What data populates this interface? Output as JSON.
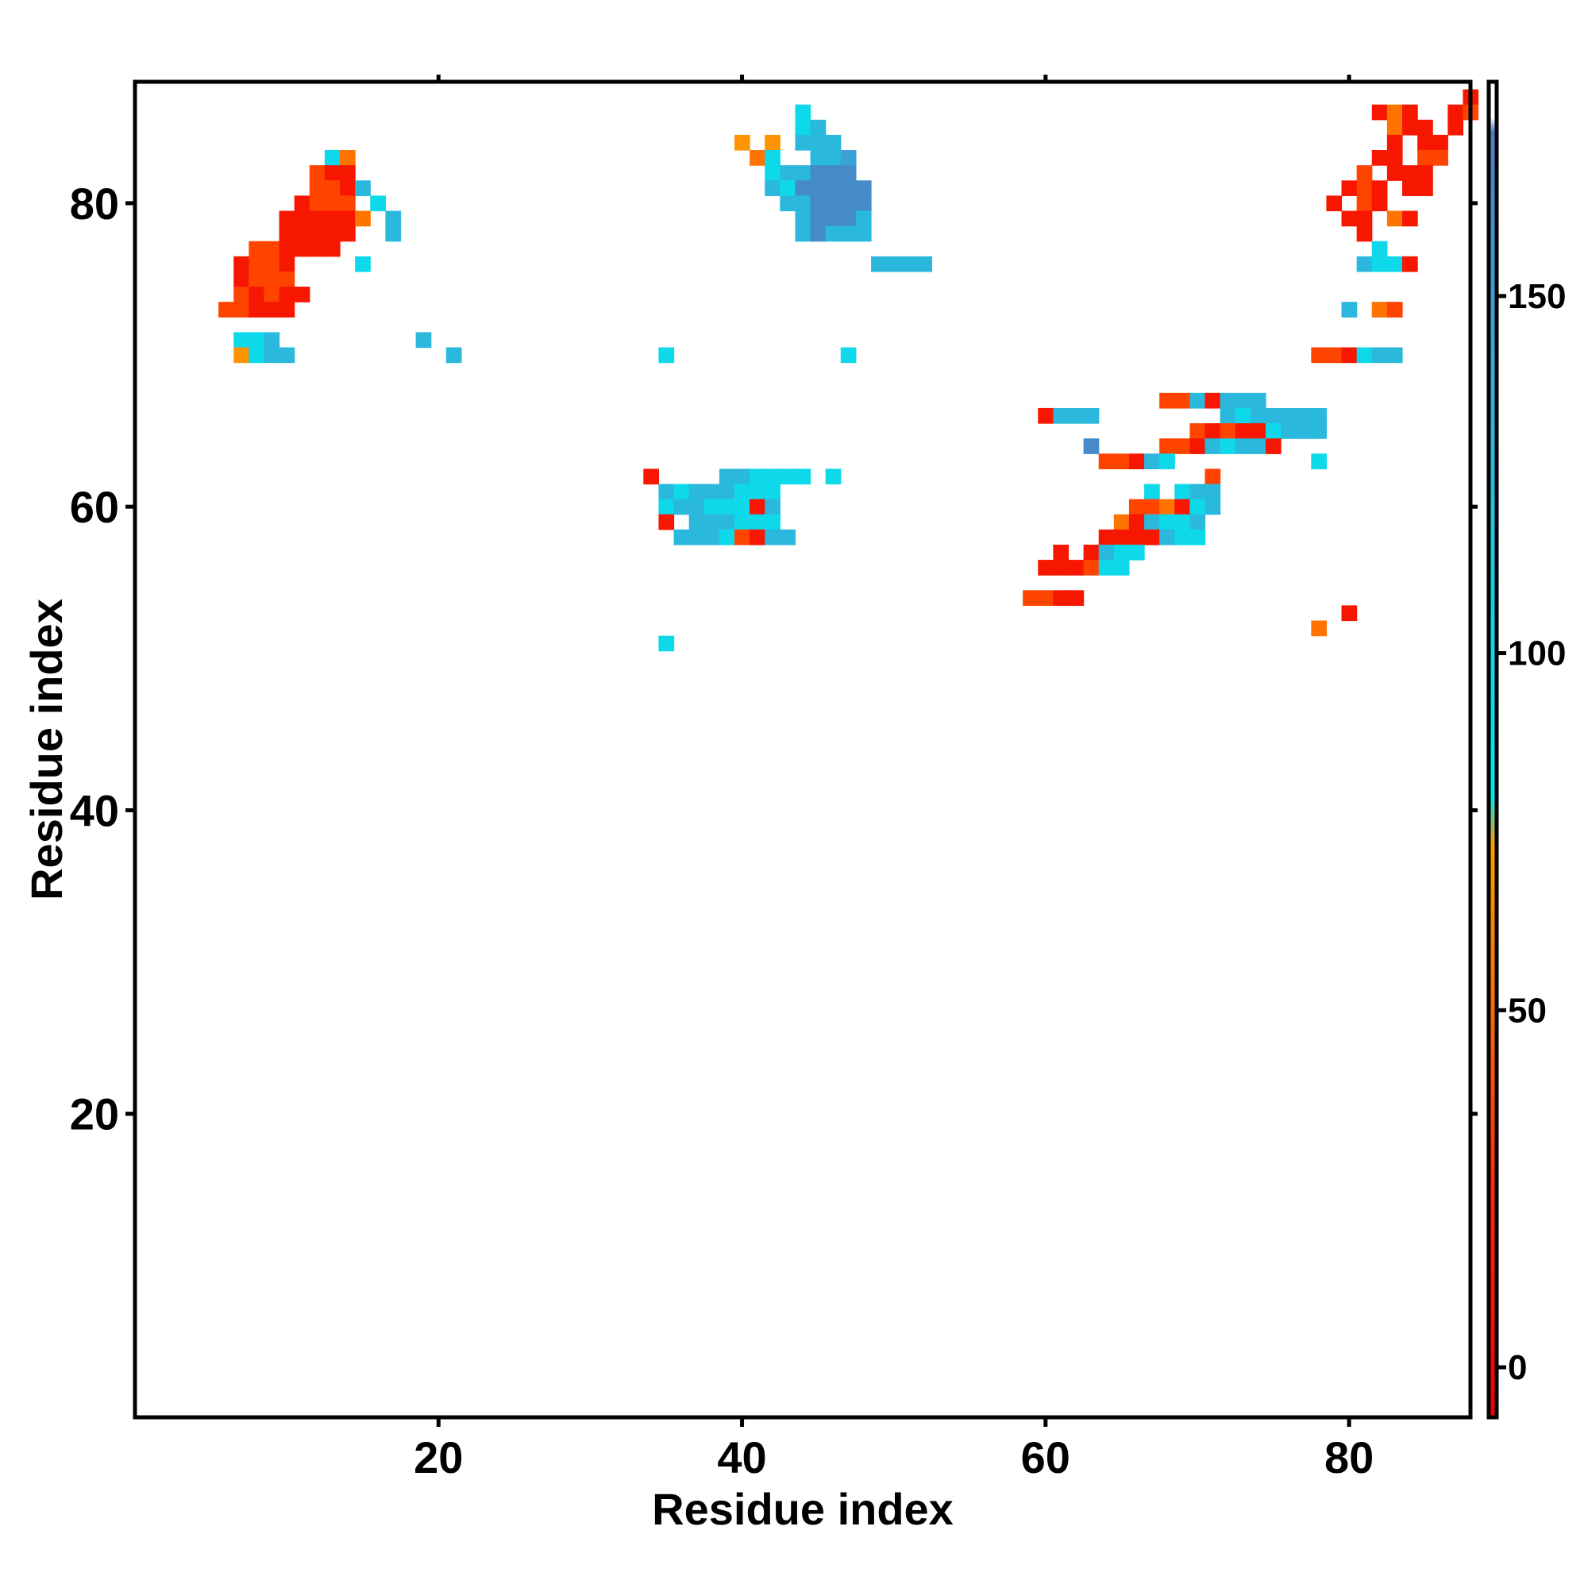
{
  "chart_data": {
    "type": "heatmap",
    "title": "",
    "xlabel": "Residue index",
    "ylabel": "Residue index",
    "xlim": [
      0,
      88
    ],
    "ylim": [
      0,
      88
    ],
    "x_ticks": [
      20,
      40,
      60,
      80
    ],
    "x_tick_labels": [
      "20",
      "40",
      "60",
      "80"
    ],
    "y_ticks": [
      20,
      40,
      60,
      80
    ],
    "y_tick_labels": [
      "20",
      "40",
      "60",
      "80"
    ],
    "grid": false,
    "legend": "colorbar-right",
    "colorbar": {
      "range": [
        -7,
        180
      ],
      "ticks": [
        0,
        50,
        100,
        150
      ],
      "tick_labels": [
        "0",
        "50",
        "100",
        "150"
      ],
      "stops": [
        {
          "value": -7,
          "color": "#ee0000"
        },
        {
          "value": 25,
          "color": "#ff2a00"
        },
        {
          "value": 50,
          "color": "#ff6a00"
        },
        {
          "value": 73,
          "color": "#ff9a00"
        },
        {
          "value": 80,
          "color": "#00e5f0"
        },
        {
          "value": 120,
          "color": "#22c5e0"
        },
        {
          "value": 150,
          "color": "#3aa0d8"
        },
        {
          "value": 173,
          "color": "#4a80c0"
        },
        {
          "value": 175,
          "color": "#ffffff"
        },
        {
          "value": 180,
          "color": "#ffffff"
        }
      ]
    },
    "value_legend": {
      "red": 10,
      "red-orange": 35,
      "orange": 55,
      "amber": 70,
      "cyan": 95,
      "light-blue": 130,
      "mid-blue": 150,
      "steel-blue": 165
    },
    "cell_encoding": "Each row string is one y-index (first row y=88, last row y=1); character at position i is x=i+1. Codes: '.' empty, r=red, o=red-orange, a=orange, y=amber, c=cyan, l=light-blue, m=mid-blue, b=steel-blue.",
    "rows": [
      "........................................................................................",
      ".......................................................................................r",
      "...........................................c.....................................rar..ro",
      "...........................................cl.....................................arr.r.",
      ".......................................y.y.lll....................................r.rr..",
      "............ca..........................ac..llm..................................rr.oo..",
      "...........orr...........................cllbbb.................................o.rrr...",
      "...........oorl..........................lcbbbbb...............................ror.rr....",
      "..........rooo.c..........................llbbbb..............................r.or......",
      ".........rrrrra.l..........................lbbbl...............................rr.ar......",
      ".........rrrrr..l..........................lblll................................r.......",
      ".......oorrrr....................................................................c.......",
      "......roor....c.................................llll............................lccr.....",
      "......rooo..............................................................................",
      "......ororr..............................................................................",
      ".....oorrr.....................................................................l.ao......",
      ".......................................................................................",
      "......ccl.........l......................................................................",
      "......ycll..........l.............c...........c..............................oorcll.......",
      "......................................................................................",
      "....................................................................................",
      "...................................................................oolrlll..............",
      "...........................................................rlll........lclllll..........",
      ".....................................................................ororrclll...........",
      "..............................................................b....oorlcllr............",
      "...............................................................oorlc.........c.........",
      ".................................r....llcccc.c........................o...............",
      "..................................lclllccc........................c.cll.................",
      "..................................cllcccrl.......................ooarcl..................",
      "..................................r.lllccc......................arlccl..................",
      "...................................lllcorll....................rrrrlcc..................",
      "............................................................r.rlcc.....................",
      "...........................................................rrrocc.....................",
      "...................................................................................",
      "..........................................................oorr........................",
      "...............................................................................r.........",
      ".............................................................................a.........",
      "..................................c.................................................",
      "........................................................................................"
    ]
  }
}
